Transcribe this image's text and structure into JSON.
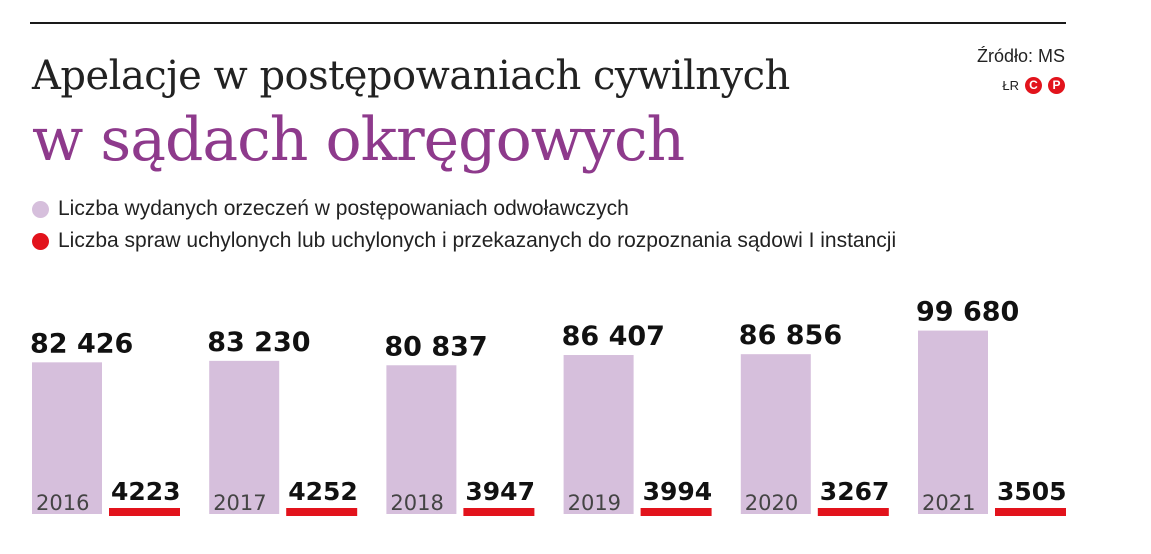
{
  "header": {
    "title_line1": "Apelacje w postępowaniach cywilnych",
    "title_line2": "w sądach okręgowych",
    "source": "Źródło: MS",
    "credit": "ŁR",
    "badge_c": "C",
    "badge_p": "P"
  },
  "legend": {
    "items": [
      {
        "label": "Liczba wydanych orzeczeń w postępowaniach odwoławczych",
        "color": "#d6bfdc"
      },
      {
        "label": "Liczba spraw uchylonych lub uchylonych i przekazanych do rozpoznania sądowi I instancji",
        "color": "#e2131c"
      }
    ]
  },
  "colors": {
    "title_accent": "#8e3a8c",
    "light_bar": "#d6bfdc",
    "red_bar": "#e2131c",
    "badge": "#e2131c"
  },
  "chart_data": {
    "type": "bar",
    "categories": [
      "2016",
      "2017",
      "2018",
      "2019",
      "2020",
      "2021"
    ],
    "series": [
      {
        "name": "Liczba wydanych orzeczeń w postępowaniach odwoławczych",
        "values": [
          82426,
          83230,
          80837,
          86407,
          86856,
          99680
        ],
        "labels": [
          "82 426",
          "83 230",
          "80 837",
          "86 407",
          "86 856",
          "99 680"
        ]
      },
      {
        "name": "Liczba spraw uchylonych lub uchylonych i przekazanych do rozpoznania sądowi I instancji",
        "values": [
          4223,
          4252,
          3947,
          3994,
          3267,
          3505
        ],
        "labels": [
          "4223",
          "4252",
          "3947",
          "3994",
          "3267",
          "3505"
        ]
      }
    ],
    "title": "Apelacje w postępowaniach cywilnych w sądach okręgowych",
    "source": "Źródło: MS",
    "ylim": [
      0,
      100000
    ],
    "grid": false,
    "legend_position": "top-left"
  }
}
